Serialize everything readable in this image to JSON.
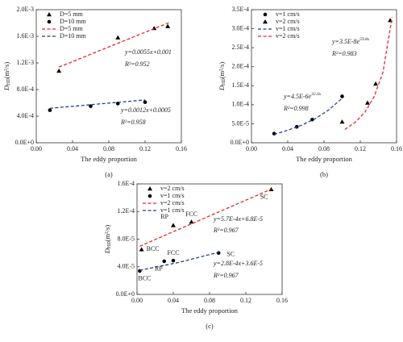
{
  "chart_data": [
    {
      "type": "scatter",
      "caption": "(a)",
      "x_label": "The eddy proportion",
      "y_label_symbol": "D",
      "y_label_subscript": "HD",
      "y_label_unit": "(m²/s)",
      "xlim": [
        0,
        0.16
      ],
      "xticks": [
        {
          "value": 0,
          "label": "0.00"
        },
        0.04,
        0.08,
        0.12,
        0.16
      ],
      "ylim": [
        0,
        0.002
      ],
      "yticks": [
        {
          "value": 0,
          "label": "0.0E+0"
        },
        {
          "value": 0.0004,
          "label": "4.0E-4"
        },
        {
          "value": 0.0008,
          "label": "8.0E-4"
        },
        {
          "value": 0.0012,
          "label": "1.2E-3"
        },
        {
          "value": 0.0016,
          "label": "1.6E-3"
        },
        {
          "value": 0.002,
          "label": "2.0E-3"
        }
      ],
      "grid": false,
      "legend": "upper left",
      "series": [
        {
          "name": "D=5 mm",
          "color": "#000000",
          "marker": "triangle",
          "x": [
            0.025,
            0.09,
            0.13,
            0.145
          ],
          "values": [
            0.00108,
            0.00158,
            0.00172,
            0.00175
          ]
        },
        {
          "name": "D=10 mm",
          "color": "#000000",
          "marker": "circle",
          "x": [
            0.015,
            0.06,
            0.09,
            0.12
          ],
          "values": [
            0.00049,
            0.00055,
            0.00059,
            0.00061
          ]
        },
        {
          "name": "D=5 mm",
          "color": "#e8262a",
          "dash": true,
          "x": [
            0.025,
            0.148
          ],
          "values": [
            0.0011375,
            0.001814
          ]
        },
        {
          "name": "D=10 mm",
          "color": "#1f3f94",
          "dash": true,
          "x": [
            0.015,
            0.12
          ],
          "values": [
            0.000518,
            0.000644
          ]
        }
      ],
      "annotations": [
        {
          "text": "y=0.0055x+0.001"
        },
        {
          "text": "R²=0.952"
        },
        {
          "text": "y=0.0012x+0.0005"
        },
        {
          "text": "R²=0.958"
        }
      ]
    },
    {
      "type": "scatter",
      "caption": "(b)",
      "x_label": "The eddy proportion",
      "y_label_symbol": "D",
      "y_label_subscript": "HD",
      "y_label_unit": "(m²/s)",
      "xlim": [
        0,
        0.16
      ],
      "xticks": [
        {
          "value": 0,
          "label": "0.00"
        },
        0.04,
        0.08,
        0.12,
        0.16
      ],
      "ylim": [
        0,
        0.00035
      ],
      "yticks": [
        {
          "value": 0,
          "label": "0.0E+0"
        },
        {
          "value": 5e-05,
          "label": "5.0E-5"
        },
        {
          "value": 0.0001,
          "label": "1.0E-4"
        },
        {
          "value": 0.00015,
          "label": "1.5E-4"
        },
        {
          "value": 0.0002,
          "label": "2.0E-4"
        },
        {
          "value": 0.00025,
          "label": "2.5E-4"
        },
        {
          "value": 0.0003,
          "label": "3.0E-4"
        },
        {
          "value": 0.00035,
          "label": "3.5E-4"
        }
      ],
      "grid": false,
      "legend": "upper left",
      "series": [
        {
          "name": "v=1 cm/s",
          "color": "#000000",
          "marker": "circle",
          "x": [
            0.025,
            0.05,
            0.067,
            0.1
          ],
          "values": [
            2.4e-05,
            4.2e-05,
            6.1e-05,
            0.000122
          ]
        },
        {
          "name": "v=2 cm/s",
          "color": "#000000",
          "marker": "triangle",
          "x": [
            0.1,
            0.128,
            0.137,
            0.153
          ],
          "values": [
            5.5e-05,
            0.000105,
            0.000155,
            0.000322
          ]
        },
        {
          "name": "v=1 cm/s",
          "color": "#1f3f94",
          "dash": true,
          "x": [
            0.025,
            0.04,
            0.055,
            0.07,
            0.085,
            0.1
          ],
          "values": [
            2.2e-05,
            3.3e-05,
            4.6e-05,
            6.3e-05,
            8.6e-05,
            0.000117
          ]
        },
        {
          "name": "v=2 cm/s",
          "color": "#e8262a",
          "dash": true,
          "x": [
            0.103,
            0.115,
            0.125,
            0.135,
            0.145,
            0.155
          ],
          "values": [
            3.5e-05,
            5.5e-05,
            8e-05,
            0.00012,
            0.000185,
            0.00033
          ]
        }
      ],
      "annotations": [
        {
          "text": "y=3.5E-8e",
          "sup": "59.8x"
        },
        {
          "text": "R²=0.983"
        },
        {
          "text": "y=4.5E-6e",
          "sup": "32.6x"
        },
        {
          "text": "R²=0.998"
        }
      ]
    },
    {
      "type": "scatter",
      "caption": "(c)",
      "x_label": "The eddy proportion",
      "y_label_symbol": "D",
      "y_label_subscript": "HD",
      "y_label_unit": "(m²/s)",
      "xlim": [
        0,
        0.16
      ],
      "xticks": [
        {
          "value": 0,
          "label": "0.00"
        },
        0.04,
        0.08,
        0.12,
        0.16
      ],
      "ylim": [
        0,
        0.00016
      ],
      "yticks": [
        {
          "value": 0,
          "label": "0.0E+0"
        },
        {
          "value": 4e-05,
          "label": "4.0E-5"
        },
        {
          "value": 8e-05,
          "label": "8.0E-5"
        },
        {
          "value": 0.00012,
          "label": "1.2E-4"
        },
        {
          "value": 0.00016,
          "label": "1.6E-4"
        }
      ],
      "grid": false,
      "legend": "upper left",
      "series": [
        {
          "name": "v=2 cm/s",
          "color": "#000000",
          "marker": "triangle",
          "x": [
            0.005,
            0.04,
            0.06,
            0.148
          ],
          "values": [
            6.5e-05,
            0.0001,
            0.000105,
            0.000152
          ],
          "point_labels": [
            "BCC",
            "RP",
            "FCC",
            "SC"
          ]
        },
        {
          "name": "v=1 cm/s",
          "color": "#000000",
          "marker": "circle",
          "x": [
            0.003,
            0.03,
            0.04,
            0.09
          ],
          "values": [
            3.4e-05,
            4.8e-05,
            4.9e-05,
            6e-05
          ],
          "point_labels": [
            "BCC",
            "RP",
            "FCC",
            "SC"
          ]
        },
        {
          "name": "v=2 cm/s",
          "color": "#e8262a",
          "dash": true,
          "x": [
            0.003,
            0.148
          ],
          "values": [
            6.97e-05,
            0.0001524
          ]
        },
        {
          "name": "v=1 cm/s",
          "color": "#1f3f94",
          "dash": true,
          "x": [
            0.003,
            0.045,
            0.09
          ],
          "values": [
            3.5e-05,
            4.6e-05,
            6.1e-05
          ]
        }
      ],
      "annotations": [
        {
          "text": "y=5.7E-4x+6.8E-5"
        },
        {
          "text": "R²=0.967"
        },
        {
          "text": "y=2.8E-4x+3.6E-5"
        },
        {
          "text": "R²=0.967"
        }
      ]
    }
  ]
}
